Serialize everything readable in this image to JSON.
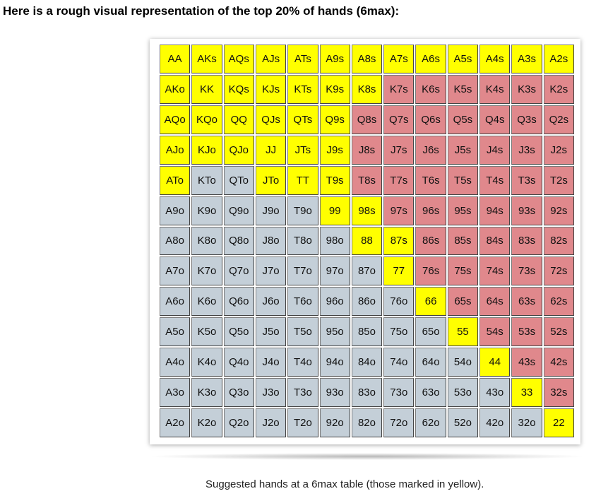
{
  "heading": "Here is a rough visual representation of the top 20% of hands (6max):",
  "caption": "Suggested hands at a 6max table (those marked in yellow).",
  "colors": {
    "yellow": "#ffff00",
    "red": "#e0888c",
    "gray": "#c4cfd8"
  },
  "grid": {
    "rows": [
      [
        "AA",
        "AKs",
        "AQs",
        "AJs",
        "ATs",
        "A9s",
        "A8s",
        "A7s",
        "A6s",
        "A5s",
        "A4s",
        "A3s",
        "A2s"
      ],
      [
        "AKo",
        "KK",
        "KQs",
        "KJs",
        "KTs",
        "K9s",
        "K8s",
        "K7s",
        "K6s",
        "K5s",
        "K4s",
        "K3s",
        "K2s"
      ],
      [
        "AQo",
        "KQo",
        "QQ",
        "QJs",
        "QTs",
        "Q9s",
        "Q8s",
        "Q7s",
        "Q6s",
        "Q5s",
        "Q4s",
        "Q3s",
        "Q2s"
      ],
      [
        "AJo",
        "KJo",
        "QJo",
        "JJ",
        "JTs",
        "J9s",
        "J8s",
        "J7s",
        "J6s",
        "J5s",
        "J4s",
        "J3s",
        "J2s"
      ],
      [
        "ATo",
        "KTo",
        "QTo",
        "JTo",
        "TT",
        "T9s",
        "T8s",
        "T7s",
        "T6s",
        "T5s",
        "T4s",
        "T3s",
        "T2s"
      ],
      [
        "A9o",
        "K9o",
        "Q9o",
        "J9o",
        "T9o",
        "99",
        "98s",
        "97s",
        "96s",
        "95s",
        "94s",
        "93s",
        "92s"
      ],
      [
        "A8o",
        "K8o",
        "Q8o",
        "J8o",
        "T8o",
        "98o",
        "88",
        "87s",
        "86s",
        "85s",
        "84s",
        "83s",
        "82s"
      ],
      [
        "A7o",
        "K7o",
        "Q7o",
        "J7o",
        "T7o",
        "97o",
        "87o",
        "77",
        "76s",
        "75s",
        "74s",
        "73s",
        "72s"
      ],
      [
        "A6o",
        "K6o",
        "Q6o",
        "J6o",
        "T6o",
        "96o",
        "86o",
        "76o",
        "66",
        "65s",
        "64s",
        "63s",
        "62s"
      ],
      [
        "A5o",
        "K5o",
        "Q5o",
        "J5o",
        "T5o",
        "95o",
        "85o",
        "75o",
        "65o",
        "55",
        "54s",
        "53s",
        "52s"
      ],
      [
        "A4o",
        "K4o",
        "Q4o",
        "J4o",
        "T4o",
        "94o",
        "84o",
        "74o",
        "64o",
        "54o",
        "44",
        "43s",
        "42s"
      ],
      [
        "A3o",
        "K3o",
        "Q3o",
        "J3o",
        "T3o",
        "93o",
        "83o",
        "73o",
        "63o",
        "53o",
        "43o",
        "33",
        "32s"
      ],
      [
        "A2o",
        "K2o",
        "Q2o",
        "J2o",
        "T2o",
        "92o",
        "82o",
        "72o",
        "62o",
        "52o",
        "42o",
        "32o",
        "22"
      ]
    ],
    "fills": [
      "yyyyyyyyyyyyy",
      "yyyyyyyrrrrrr",
      "yyyyyyrrrrrrr",
      "yyyyyyrrrrrrr",
      "yggyyyrrrrrrr",
      "gggggyyrrrrrr",
      "ggggggyyrrrrr",
      "gggggggyrrrrr",
      "ggggggggyrrrr",
      "gggggggggyrrr",
      "ggggggggggyrr",
      "gggggggggggyr",
      "ggggggggggggy"
    ]
  }
}
